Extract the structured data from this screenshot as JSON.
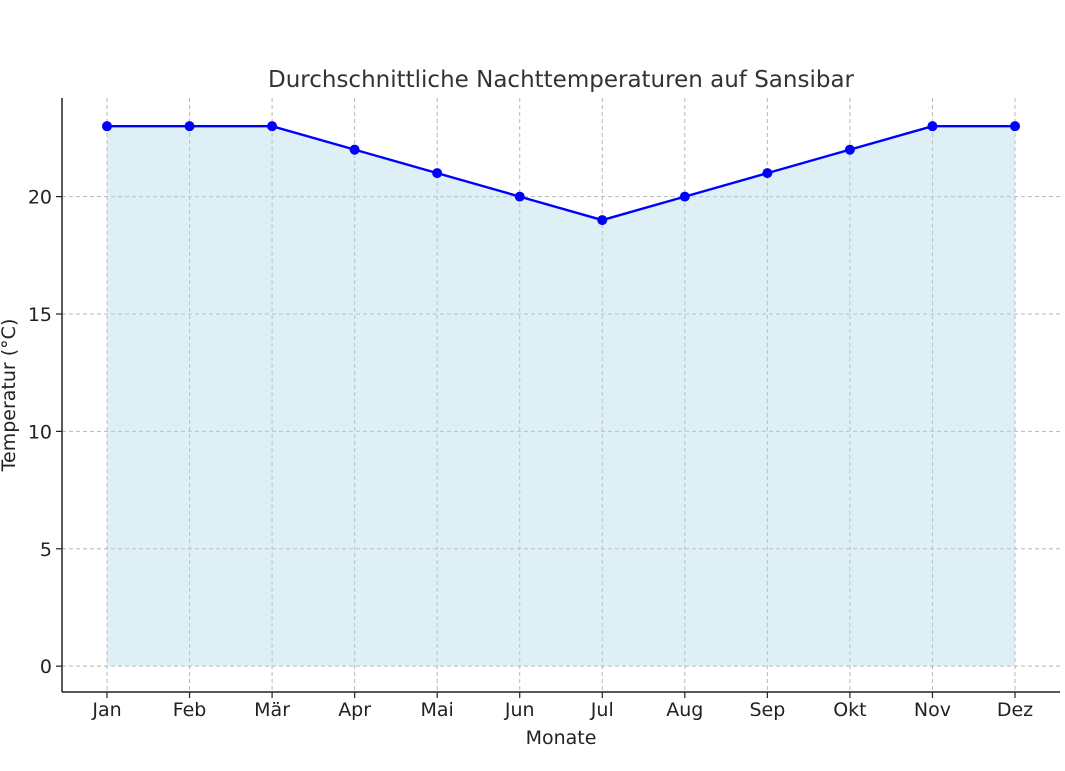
{
  "chart_data": {
    "type": "area",
    "title": "Durchschnittliche Nachttemperaturen auf Sansibar",
    "xlabel": "Monate",
    "ylabel": "Temperatur (°C)",
    "categories": [
      "Jan",
      "Feb",
      "Mär",
      "Apr",
      "Mai",
      "Jun",
      "Jul",
      "Aug",
      "Sep",
      "Okt",
      "Nov",
      "Dez"
    ],
    "values": [
      23,
      23,
      23,
      22,
      21,
      20,
      19,
      20,
      21,
      22,
      23,
      23
    ],
    "ylim": [
      -1.1,
      24.2
    ],
    "yticks": [
      0,
      5,
      10,
      15,
      20
    ],
    "grid": true,
    "colors": {
      "line": "#0000ff",
      "fill": "#add8e6",
      "marker": "#0000ff"
    }
  }
}
